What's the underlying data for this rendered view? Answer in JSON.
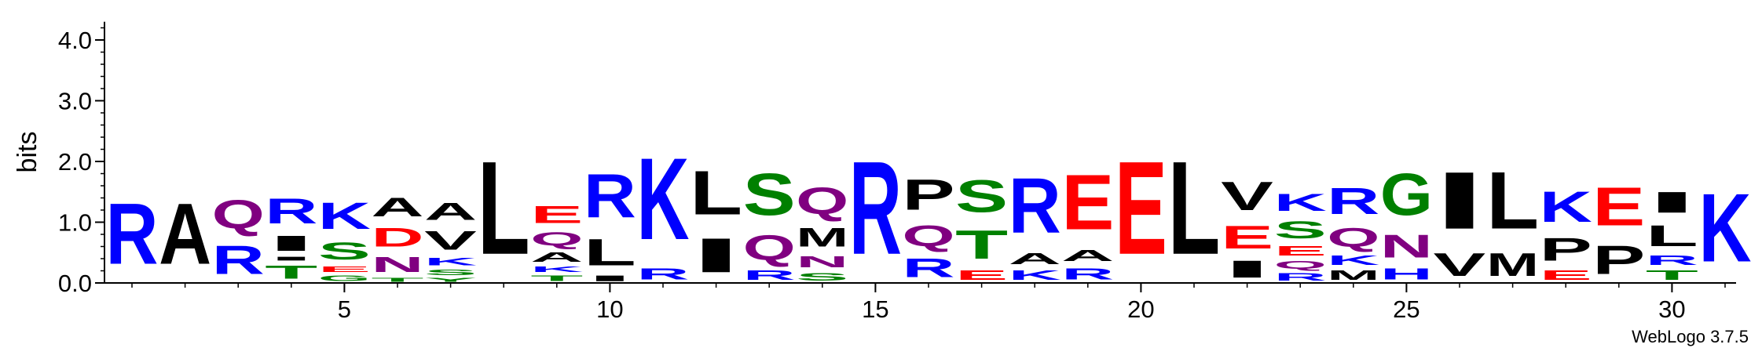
{
  "chart_data": {
    "type": "sequence-logo",
    "title": "",
    "xlabel": "",
    "ylabel": "bits",
    "ylim": [
      0,
      4.3
    ],
    "yticks": [
      "0.0",
      "1.0",
      "2.0",
      "3.0",
      "4.0"
    ],
    "xticks": [
      "5",
      "10",
      "15",
      "20",
      "25",
      "30"
    ],
    "credit": "WebLogo 3.7.5",
    "colors": {
      "basic": "#0000ff",
      "acidic": "#ff0000",
      "polar": "#008000",
      "amide": "#800080",
      "hydrophobic": "#000000"
    },
    "positions": [
      {
        "pos": 1,
        "stack": [
          {
            "letter": "R",
            "height": 1.6
          }
        ]
      },
      {
        "pos": 2,
        "stack": [
          {
            "letter": "A",
            "height": 1.6
          }
        ]
      },
      {
        "pos": 3,
        "stack": [
          {
            "letter": "R",
            "height": 0.75
          },
          {
            "letter": "Q",
            "height": 0.75
          }
        ]
      },
      {
        "pos": 4,
        "stack": [
          {
            "letter": "T",
            "height": 0.35
          },
          {
            "letter": "I",
            "height": 0.1
          },
          {
            "letter": "I",
            "height": 0.4
          },
          {
            "letter": "R",
            "height": 0.65
          }
        ]
      },
      {
        "pos": 5,
        "stack": [
          {
            "letter": "G",
            "height": 0.15
          },
          {
            "letter": "E",
            "height": 0.15
          },
          {
            "letter": "S",
            "height": 0.45
          },
          {
            "letter": "K",
            "height": 0.7
          }
        ]
      },
      {
        "pos": 6,
        "stack": [
          {
            "letter": "T",
            "height": 0.1
          },
          {
            "letter": "N",
            "height": 0.4
          },
          {
            "letter": "D",
            "height": 0.5
          },
          {
            "letter": "A",
            "height": 0.5
          }
        ]
      },
      {
        "pos": 7,
        "stack": [
          {
            "letter": "Y",
            "height": 0.1
          },
          {
            "letter": "S",
            "height": 0.15
          },
          {
            "letter": "K",
            "height": 0.2
          },
          {
            "letter": "V",
            "height": 0.5
          },
          {
            "letter": "A",
            "height": 0.45
          }
        ]
      },
      {
        "pos": 8,
        "stack": [
          {
            "letter": "L",
            "height": 2.45
          }
        ]
      },
      {
        "pos": 9,
        "stack": [
          {
            "letter": "T",
            "height": 0.15
          },
          {
            "letter": "K",
            "height": 0.15
          },
          {
            "letter": "A",
            "height": 0.25
          },
          {
            "letter": "Q",
            "height": 0.35
          },
          {
            "letter": "E",
            "height": 0.45
          }
        ]
      },
      {
        "pos": 10,
        "stack": [
          {
            "letter": "I",
            "height": 0.15
          },
          {
            "letter": "L",
            "height": 0.7
          },
          {
            "letter": "R",
            "height": 1.15
          }
        ]
      },
      {
        "pos": 11,
        "stack": [
          {
            "letter": "R",
            "height": 0.3
          },
          {
            "letter": "K",
            "height": 2.15
          }
        ]
      },
      {
        "pos": 12,
        "stack": [
          {
            "letter": "I",
            "height": 0.9
          },
          {
            "letter": "L",
            "height": 1.15
          }
        ]
      },
      {
        "pos": 13,
        "stack": [
          {
            "letter": "R",
            "height": 0.25
          },
          {
            "letter": "Q",
            "height": 0.65
          },
          {
            "letter": "S",
            "height": 1.1
          }
        ]
      },
      {
        "pos": 14,
        "stack": [
          {
            "letter": "S",
            "height": 0.2
          },
          {
            "letter": "N",
            "height": 0.3
          },
          {
            "letter": "M",
            "height": 0.5
          },
          {
            "letter": "Q",
            "height": 0.7
          }
        ]
      },
      {
        "pos": 15,
        "stack": [
          {
            "letter": "R",
            "height": 2.45
          }
        ]
      },
      {
        "pos": 16,
        "stack": [
          {
            "letter": "R",
            "height": 0.5
          },
          {
            "letter": "Q",
            "height": 0.55
          },
          {
            "letter": "P",
            "height": 0.8
          }
        ]
      },
      {
        "pos": 17,
        "stack": [
          {
            "letter": "E",
            "height": 0.25
          },
          {
            "letter": "T",
            "height": 0.75
          },
          {
            "letter": "S",
            "height": 0.85
          }
        ]
      },
      {
        "pos": 18,
        "stack": [
          {
            "letter": "K",
            "height": 0.25
          },
          {
            "letter": "A",
            "height": 0.3
          },
          {
            "letter": "R",
            "height": 1.45
          }
        ]
      },
      {
        "pos": 19,
        "stack": [
          {
            "letter": "R",
            "height": 0.3
          },
          {
            "letter": "A",
            "height": 0.3
          },
          {
            "letter": "E",
            "height": 1.45
          }
        ]
      },
      {
        "pos": 20,
        "stack": [
          {
            "letter": "E",
            "height": 2.45
          }
        ]
      },
      {
        "pos": 21,
        "stack": [
          {
            "letter": "L",
            "height": 2.45
          }
        ]
      },
      {
        "pos": 22,
        "stack": [
          {
            "letter": "I",
            "height": 0.45
          },
          {
            "letter": "E",
            "height": 0.6
          },
          {
            "letter": "V",
            "height": 0.75
          }
        ]
      },
      {
        "pos": 23,
        "stack": [
          {
            "letter": "R",
            "height": 0.2
          },
          {
            "letter": "Q",
            "height": 0.2
          },
          {
            "letter": "E",
            "height": 0.25
          },
          {
            "letter": "S",
            "height": 0.45
          },
          {
            "letter": "K",
            "height": 0.45
          }
        ]
      },
      {
        "pos": 24,
        "stack": [
          {
            "letter": "M",
            "height": 0.25
          },
          {
            "letter": "K",
            "height": 0.25
          },
          {
            "letter": "Q",
            "height": 0.5
          },
          {
            "letter": "R",
            "height": 0.7
          }
        ]
      },
      {
        "pos": 25,
        "stack": [
          {
            "letter": "H",
            "height": 0.3
          },
          {
            "letter": "N",
            "height": 0.6
          },
          {
            "letter": "G",
            "height": 1.1
          }
        ]
      },
      {
        "pos": 26,
        "stack": [
          {
            "letter": "V",
            "height": 0.6
          },
          {
            "letter": "I",
            "height": 1.5
          }
        ]
      },
      {
        "pos": 27,
        "stack": [
          {
            "letter": "M",
            "height": 0.6
          },
          {
            "letter": "L",
            "height": 1.5
          }
        ]
      },
      {
        "pos": 28,
        "stack": [
          {
            "letter": "E",
            "height": 0.25
          },
          {
            "letter": "P",
            "height": 0.6
          },
          {
            "letter": "K",
            "height": 0.8
          }
        ]
      },
      {
        "pos": 29,
        "stack": [
          {
            "letter": "P",
            "height": 0.75
          },
          {
            "letter": "E",
            "height": 1.0
          }
        ]
      },
      {
        "pos": 30,
        "stack": [
          {
            "letter": "T",
            "height": 0.25
          },
          {
            "letter": "R",
            "height": 0.25
          },
          {
            "letter": "L",
            "height": 0.55
          },
          {
            "letter": "I",
            "height": 0.55
          }
        ]
      },
      {
        "pos": 31,
        "stack": [
          {
            "letter": "K",
            "height": 1.8
          }
        ]
      }
    ]
  }
}
